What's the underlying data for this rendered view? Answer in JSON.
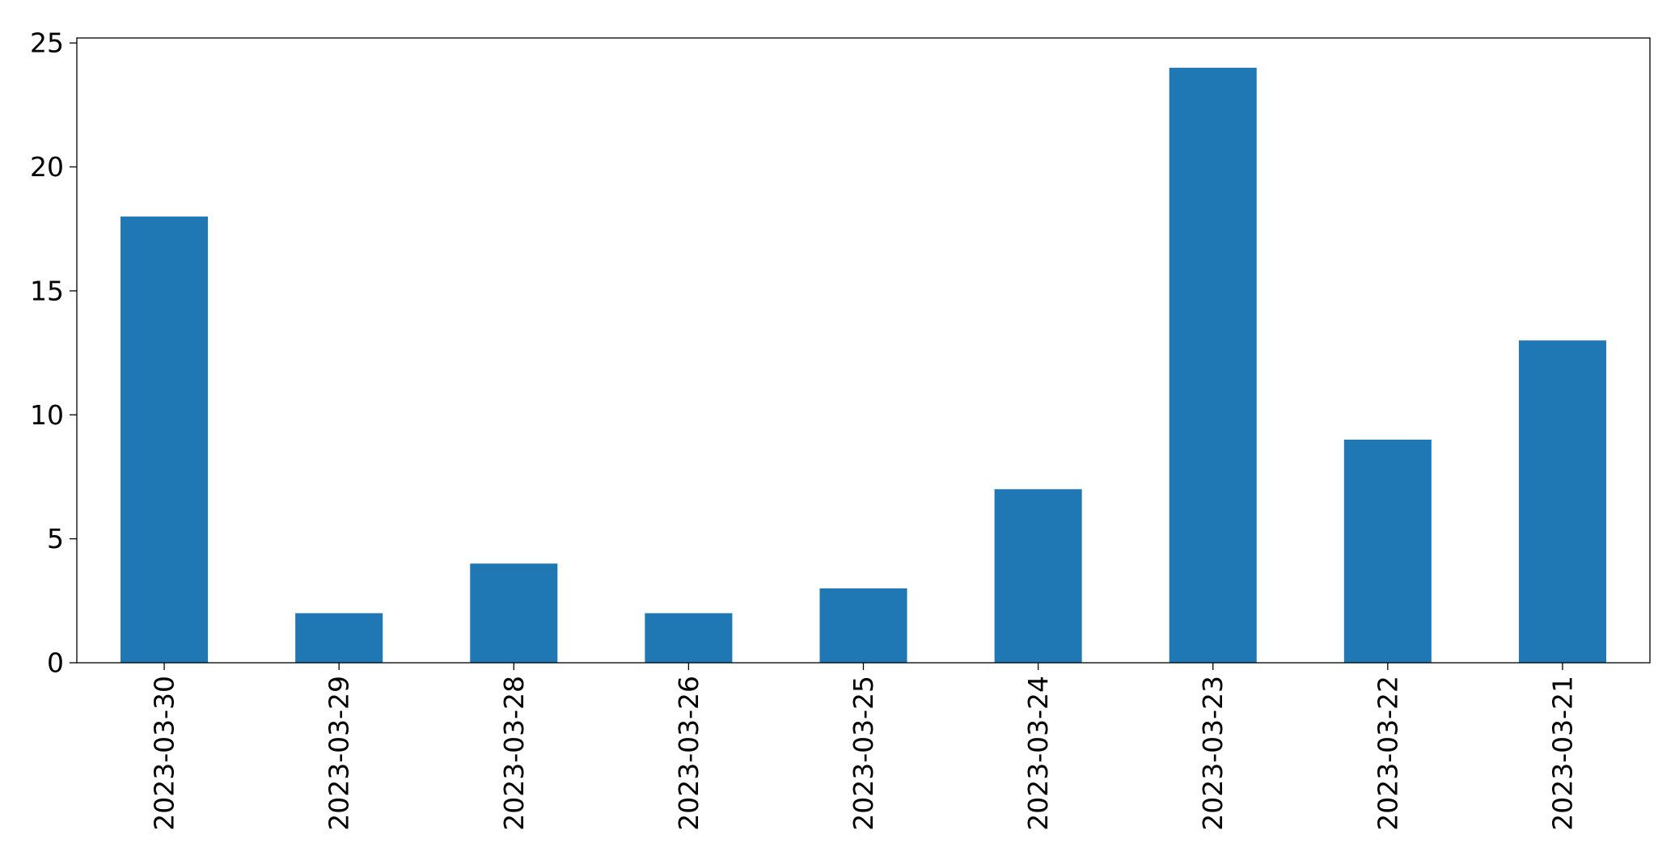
{
  "chart_data": {
    "type": "bar",
    "title": "",
    "xlabel": "",
    "ylabel": "",
    "categories": [
      "2023-03-30",
      "2023-03-29",
      "2023-03-28",
      "2023-03-26",
      "2023-03-25",
      "2023-03-24",
      "2023-03-23",
      "2023-03-22",
      "2023-03-21"
    ],
    "values": [
      18,
      2,
      4,
      2,
      3,
      7,
      24,
      9,
      13
    ],
    "ylim": [
      0,
      25.2
    ],
    "yticks": [
      0,
      5,
      10,
      15,
      20,
      25
    ],
    "bar_color": "#1f77b4",
    "grid": false,
    "legend": "none"
  }
}
